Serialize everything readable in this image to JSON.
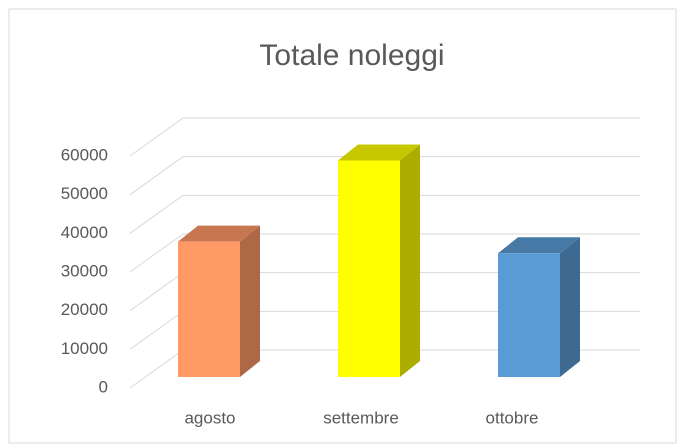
{
  "chart_data": {
    "type": "bar3d",
    "title": "Totale noleggi",
    "categories": [
      "agosto",
      "settembre",
      "ottobre"
    ],
    "values": [
      35000,
      56000,
      32000
    ],
    "colors": [
      "#ff9966",
      "#ffff00",
      "#5b9bd5"
    ],
    "ylim": [
      0,
      60000
    ],
    "yticks": [
      0,
      10000,
      20000,
      30000,
      40000,
      50000,
      60000
    ],
    "grid": true
  }
}
